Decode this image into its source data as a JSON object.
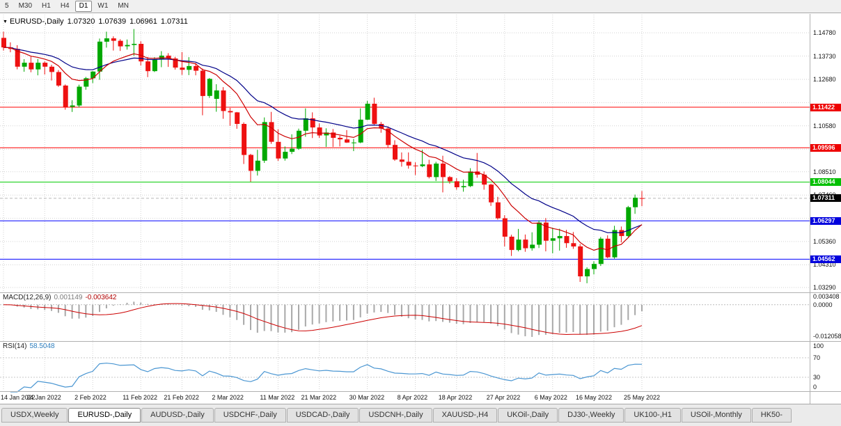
{
  "toolbar": {
    "periods": [
      {
        "label": "5",
        "active": false
      },
      {
        "label": "M30",
        "active": false
      },
      {
        "label": "H1",
        "active": false
      },
      {
        "label": "H4",
        "active": false
      },
      {
        "label": "D1",
        "active": true
      },
      {
        "label": "W1",
        "active": false
      },
      {
        "label": "MN",
        "active": false
      }
    ]
  },
  "chart_data": {
    "type": "candlestick",
    "title": "EURUSD-,Daily",
    "ohlc": {
      "open": "1.07320",
      "high": "1.07639",
      "low": "1.06961",
      "close": "1.07311"
    },
    "current_price": 1.07311,
    "price_axis": {
      "range": {
        "top": 1.1538,
        "bottom": 1.031
      },
      "grid_prices": [
        1.1478,
        1.1373,
        1.1268,
        1.1163,
        1.1058,
        1.0953,
        1.0851,
        1.0746,
        1.0641,
        1.0536,
        1.0431,
        1.0329
      ],
      "visible_labels": [
        {
          "text": "1.14780",
          "price": 1.1478
        },
        {
          "text": "1.13730",
          "price": 1.1373
        },
        {
          "text": "1.12680",
          "price": 1.1268
        },
        {
          "text": "1.10580",
          "price": 1.1058
        },
        {
          "text": "1.08510",
          "price": 1.0851
        },
        {
          "text": "1.07460",
          "price": 1.0746
        },
        {
          "text": "1.05360",
          "price": 1.0536
        },
        {
          "text": "1.04310",
          "price": 1.0431
        },
        {
          "text": "1.03290",
          "price": 1.0329
        }
      ]
    },
    "hlines": [
      {
        "price": 1.11422,
        "color": "#ff0000"
      },
      {
        "price": 1.09596,
        "color": "#ff0000"
      },
      {
        "price": 1.08044,
        "color": "#00cc00"
      },
      {
        "price": 1.06297,
        "color": "#0000ff"
      },
      {
        "price": 1.04562,
        "color": "#0000ff"
      }
    ],
    "badges": [
      {
        "text": "1.11422",
        "price": 1.11422,
        "bg": "#ee0000"
      },
      {
        "text": "1.09596",
        "price": 1.09596,
        "bg": "#ee0000"
      },
      {
        "text": "1.08044",
        "price": 1.08044,
        "bg": "#00c000"
      },
      {
        "text": "1.07311",
        "price": 1.07311,
        "bg": "#000000"
      },
      {
        "text": "1.06297",
        "price": 1.06297,
        "bg": "#0000dd"
      },
      {
        "text": "1.04562",
        "price": 1.04562,
        "bg": "#0000dd"
      }
    ],
    "date_labels": [
      {
        "label": "14 Jan 2022",
        "index": 0
      },
      {
        "label": "24 Jan 2022",
        "index": 6
      },
      {
        "label": "2 Feb 2022",
        "index": 13
      },
      {
        "label": "11 Feb 2022",
        "index": 20
      },
      {
        "label": "21 Feb 2022",
        "index": 26
      },
      {
        "label": "2 Mar 2022",
        "index": 33
      },
      {
        "label": "11 Mar 2022",
        "index": 40
      },
      {
        "label": "21 Mar 2022",
        "index": 46
      },
      {
        "label": "30 Mar 2022",
        "index": 53
      },
      {
        "label": "8 Apr 2022",
        "index": 60
      },
      {
        "label": "18 Apr 2022",
        "index": 66
      },
      {
        "label": "27 Apr 2022",
        "index": 73
      },
      {
        "label": "6 May 2022",
        "index": 80
      },
      {
        "label": "16 May 2022",
        "index": 86
      },
      {
        "label": "25 May 2022",
        "index": 93
      }
    ],
    "colors": {
      "up": "#00a800",
      "down": "#ee1111",
      "ma_fast": "#cc0000",
      "ma_slow": "#000088",
      "macd_hist": "#a8a8a8",
      "macd_signal": "#cc0000",
      "rsi": "#4a96d2",
      "hline_red": "#ff0000",
      "hline_green": "#00cc00",
      "hline_blue": "#0000ff"
    },
    "candles": [
      [
        1.1455,
        1.1483,
        1.1398,
        1.1412
      ],
      [
        1.1412,
        1.1435,
        1.139,
        1.1405
      ],
      [
        1.1405,
        1.1422,
        1.1313,
        1.1325
      ],
      [
        1.1325,
        1.1359,
        1.1302,
        1.1343
      ],
      [
        1.1343,
        1.137,
        1.13,
        1.1313
      ],
      [
        1.1313,
        1.136,
        1.1286,
        1.1343
      ],
      [
        1.1343,
        1.1349,
        1.129,
        1.1325
      ],
      [
        1.1325,
        1.1334,
        1.1263,
        1.1301
      ],
      [
        1.1301,
        1.131,
        1.1234,
        1.124
      ],
      [
        1.124,
        1.1245,
        1.1131,
        1.1144
      ],
      [
        1.1144,
        1.1174,
        1.1121,
        1.115
      ],
      [
        1.115,
        1.1244,
        1.1141,
        1.1235
      ],
      [
        1.1235,
        1.1279,
        1.1221,
        1.1273
      ],
      [
        1.1273,
        1.1305,
        1.1251,
        1.1303
      ],
      [
        1.1303,
        1.1452,
        1.1266,
        1.1438
      ],
      [
        1.1438,
        1.1483,
        1.1411,
        1.1453
      ],
      [
        1.1453,
        1.1462,
        1.1398,
        1.1442
      ],
      [
        1.1442,
        1.1449,
        1.1396,
        1.1417
      ],
      [
        1.1417,
        1.1448,
        1.1402,
        1.1423
      ],
      [
        1.1423,
        1.1495,
        1.1374,
        1.1428
      ],
      [
        1.1428,
        1.144,
        1.133,
        1.1349
      ],
      [
        1.1349,
        1.1369,
        1.1278,
        1.1305
      ],
      [
        1.1305,
        1.1368,
        1.1301,
        1.1358
      ],
      [
        1.1358,
        1.1395,
        1.1323,
        1.1375
      ],
      [
        1.1375,
        1.1386,
        1.1324,
        1.1362
      ],
      [
        1.1362,
        1.1369,
        1.1312,
        1.1321
      ],
      [
        1.1321,
        1.1391,
        1.1288,
        1.1311
      ],
      [
        1.1311,
        1.1368,
        1.1287,
        1.1328
      ],
      [
        1.1328,
        1.1342,
        1.1286,
        1.1307
      ],
      [
        1.1307,
        1.1317,
        1.1106,
        1.1193
      ],
      [
        1.1193,
        1.1274,
        1.1184,
        1.127
      ],
      [
        1.118,
        1.1246,
        1.1122,
        1.1218
      ],
      [
        1.1218,
        1.1233,
        1.109,
        1.1125
      ],
      [
        1.1125,
        1.1139,
        1.1058,
        1.1119
      ],
      [
        1.1119,
        1.1121,
        1.1045,
        1.1067
      ],
      [
        1.1067,
        1.1074,
        1.0886,
        1.0927
      ],
      [
        1.0927,
        1.0932,
        1.0806,
        1.0855
      ],
      [
        1.0855,
        1.095,
        1.0834,
        1.0901
      ],
      [
        1.0901,
        1.1096,
        1.0891,
        1.1075
      ],
      [
        1.1075,
        1.1121,
        1.0977,
        1.0986
      ],
      [
        1.0986,
        1.1043,
        1.09,
        1.0911
      ],
      [
        1.0911,
        1.0965,
        1.0901,
        1.0941
      ],
      [
        1.0941,
        1.102,
        1.0931,
        1.0955
      ],
      [
        1.0955,
        1.1046,
        1.095,
        1.1036
      ],
      [
        1.1036,
        1.1137,
        1.1009,
        1.1092
      ],
      [
        1.1092,
        1.1119,
        1.1003,
        1.1051
      ],
      [
        1.1051,
        1.1069,
        1.1004,
        1.1015
      ],
      [
        1.1015,
        1.1047,
        1.0963,
        1.1028
      ],
      [
        1.1028,
        1.1044,
        1.0963,
        1.1004
      ],
      [
        1.1004,
        1.1014,
        1.0965,
        1.0997
      ],
      [
        1.0997,
        1.1039,
        1.0981,
        1.0983
      ],
      [
        1.0983,
        1.0999,
        1.0944,
        1.0983
      ],
      [
        1.0983,
        1.1137,
        1.098,
        1.1086
      ],
      [
        1.1086,
        1.1171,
        1.1084,
        1.1158
      ],
      [
        1.1158,
        1.1185,
        1.1061,
        1.1067
      ],
      [
        1.1067,
        1.1076,
        1.1027,
        1.1046
      ],
      [
        1.1046,
        1.1056,
        1.096,
        1.0972
      ],
      [
        1.0972,
        1.0993,
        1.09,
        1.0906
      ],
      [
        1.0906,
        1.0938,
        1.0874,
        1.0896
      ],
      [
        1.0896,
        1.0938,
        1.0865,
        1.0879
      ],
      [
        1.0879,
        1.0894,
        1.0836,
        1.0876
      ],
      [
        1.0876,
        1.095,
        1.0872,
        1.0884
      ],
      [
        1.0884,
        1.0905,
        1.0821,
        1.0827
      ],
      [
        1.0827,
        1.0896,
        1.0809,
        1.0888
      ],
      [
        1.0888,
        1.0923,
        1.0758,
        1.0827
      ],
      [
        1.0827,
        1.0832,
        1.0797,
        1.0808
      ],
      [
        1.0808,
        1.0822,
        1.077,
        1.0781
      ],
      [
        1.0781,
        1.0815,
        1.0761,
        1.0786
      ],
      [
        1.0786,
        1.0867,
        1.0782,
        1.0852
      ],
      [
        1.0852,
        1.0936,
        1.0824,
        1.0838
      ],
      [
        1.0838,
        1.0852,
        1.077,
        1.0793
      ],
      [
        1.0793,
        1.0797,
        1.0697,
        1.0713
      ],
      [
        1.0713,
        1.0738,
        1.0635,
        1.0641
      ],
      [
        1.0641,
        1.0655,
        1.0514,
        1.0558
      ],
      [
        1.0558,
        1.0567,
        1.0471,
        1.0498
      ],
      [
        1.0498,
        1.0593,
        1.0492,
        1.0545
      ],
      [
        1.0545,
        1.0568,
        1.049,
        1.0506
      ],
      [
        1.0506,
        1.0578,
        1.0495,
        1.0522
      ],
      [
        1.0522,
        1.0632,
        1.0507,
        1.0622
      ],
      [
        1.0622,
        1.0642,
        1.0492,
        1.054
      ],
      [
        1.054,
        1.0599,
        1.0483,
        1.0551
      ],
      [
        1.0551,
        1.0594,
        1.0495,
        1.0561
      ],
      [
        1.0561,
        1.0589,
        1.0508,
        1.0529
      ],
      [
        1.0529,
        1.0579,
        1.0503,
        1.0514
      ],
      [
        1.0514,
        1.0525,
        1.0354,
        1.0379
      ],
      [
        1.0379,
        1.042,
        1.0348,
        1.0412
      ],
      [
        1.0412,
        1.0447,
        1.0388,
        1.0435
      ],
      [
        1.0435,
        1.0557,
        1.0426,
        1.0549
      ],
      [
        1.0549,
        1.0564,
        1.0461,
        1.0465
      ],
      [
        1.0465,
        1.0607,
        1.0459,
        1.0588
      ],
      [
        1.0588,
        1.0604,
        1.0532,
        1.0561
      ],
      [
        1.0561,
        1.0697,
        1.0556,
        1.0691
      ],
      [
        1.0691,
        1.0748,
        1.0661,
        1.0734
      ],
      [
        1.0732,
        1.0764,
        1.0696,
        1.0731
      ]
    ]
  },
  "macd": {
    "label": "MACD(12,26,9)",
    "value": "0.001149",
    "signal_value": "-0.003642",
    "axis": [
      {
        "text": "0.003408",
        "value": 0.003408
      },
      {
        "text": "0.0000",
        "value": 0
      },
      {
        "text": "-0.012058",
        "value": -0.012058
      }
    ]
  },
  "rsi": {
    "label": "RSI(14)",
    "value": "58.5048",
    "levels": [
      70,
      30
    ],
    "axis": [
      {
        "text": "100",
        "value": 100
      },
      {
        "text": "70",
        "value": 70
      },
      {
        "text": "30",
        "value": 30
      },
      {
        "text": "0",
        "value": 0
      }
    ]
  },
  "tabs": [
    {
      "label": "USDX,Weekly",
      "active": false
    },
    {
      "label": "EURUSD-,Daily",
      "active": true
    },
    {
      "label": "AUDUSD-,Daily",
      "active": false
    },
    {
      "label": "USDCHF-,Daily",
      "active": false
    },
    {
      "label": "USDCAD-,Daily",
      "active": false
    },
    {
      "label": "USDCNH-,Daily",
      "active": false
    },
    {
      "label": "XAUUSD-,H4",
      "active": false
    },
    {
      "label": "UKOil-,Daily",
      "active": false
    },
    {
      "label": "DJ30-,Weekly",
      "active": false
    },
    {
      "label": "UK100-,H1",
      "active": false
    },
    {
      "label": "USOil-,Monthly",
      "active": false
    },
    {
      "label": "HK50-",
      "active": false
    }
  ]
}
